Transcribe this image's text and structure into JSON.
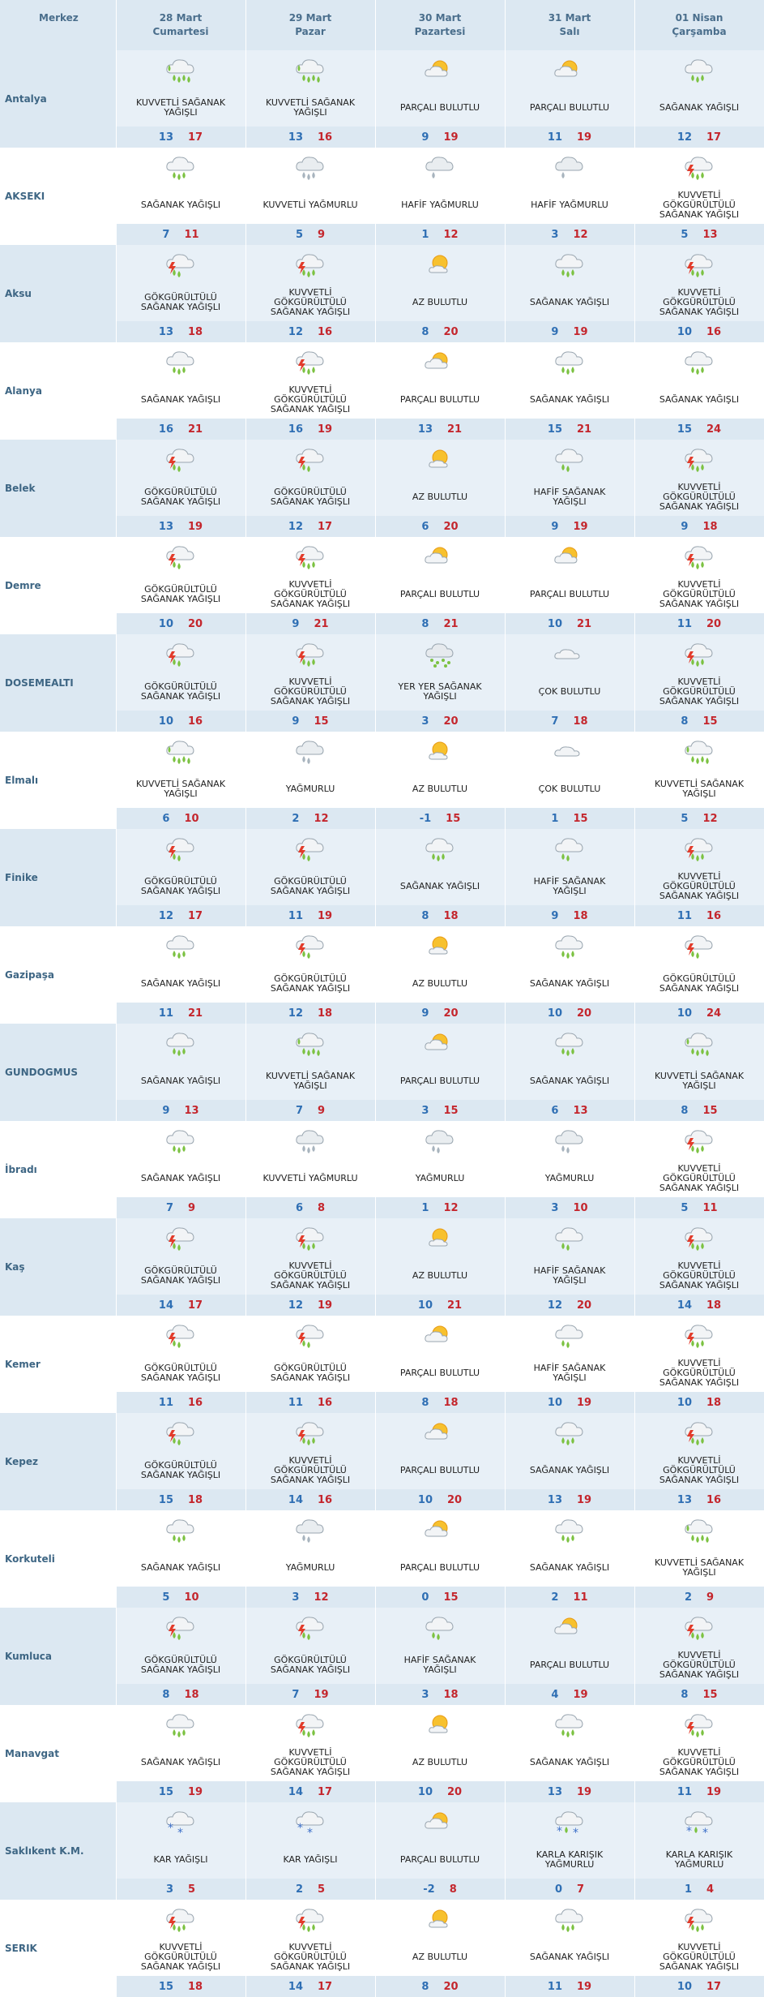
{
  "header": {
    "city_label": "Merkez",
    "days": [
      {
        "date": "28 Mart",
        "dow": "Cumartesi"
      },
      {
        "date": "29 Mart",
        "dow": "Pazar"
      },
      {
        "date": "30 Mart",
        "dow": "Pazartesi"
      },
      {
        "date": "31 Mart",
        "dow": "Salı"
      },
      {
        "date": "01 Nisan",
        "dow": "Çarşamba"
      }
    ]
  },
  "colors": {
    "min_temp": "#2f6fb4",
    "max_temp": "#c4262d",
    "header_bg": "#dce8f2"
  },
  "rows": [
    {
      "city": "Antalya",
      "days": [
        {
          "icon": "heavy-shower",
          "desc": "KUVVETLİ SAĞANAK YAĞIŞLI",
          "min": "13",
          "max": "17"
        },
        {
          "icon": "heavy-shower",
          "desc": "KUVVETLİ SAĞANAK YAĞIŞLI",
          "min": "13",
          "max": "16"
        },
        {
          "icon": "partly-cloudy",
          "desc": "PARÇALI BULUTLU",
          "min": "9",
          "max": "19"
        },
        {
          "icon": "partly-cloudy",
          "desc": "PARÇALI BULUTLU",
          "min": "11",
          "max": "19"
        },
        {
          "icon": "shower",
          "desc": "SAĞANAK YAĞIŞLI",
          "min": "12",
          "max": "17"
        }
      ]
    },
    {
      "city": "AKSEKI",
      "days": [
        {
          "icon": "shower",
          "desc": "SAĞANAK YAĞIŞLI",
          "min": "7",
          "max": "11"
        },
        {
          "icon": "heavy-rain",
          "desc": "KUVVETLİ YAĞMURLU",
          "min": "5",
          "max": "9"
        },
        {
          "icon": "light-rain",
          "desc": "HAFİF YAĞMURLU",
          "min": "1",
          "max": "12"
        },
        {
          "icon": "light-rain",
          "desc": "HAFİF YAĞMURLU",
          "min": "3",
          "max": "12"
        },
        {
          "icon": "heavy-thunder",
          "desc": "KUVVETLİ GÖKGÜRÜLTÜLÜ SAĞANAK YAĞIŞLI",
          "min": "5",
          "max": "13"
        }
      ]
    },
    {
      "city": "Aksu",
      "days": [
        {
          "icon": "thunder-shower",
          "desc": "GÖKGÜRÜLTÜLÜ SAĞANAK YAĞIŞLI",
          "min": "13",
          "max": "18"
        },
        {
          "icon": "heavy-thunder",
          "desc": "KUVVETLİ GÖKGÜRÜLTÜLÜ SAĞANAK YAĞIŞLI",
          "min": "12",
          "max": "16"
        },
        {
          "icon": "few-clouds",
          "desc": "AZ BULUTLU",
          "min": "8",
          "max": "20"
        },
        {
          "icon": "shower",
          "desc": "SAĞANAK YAĞIŞLI",
          "min": "9",
          "max": "19"
        },
        {
          "icon": "heavy-thunder",
          "desc": "KUVVETLİ GÖKGÜRÜLTÜLÜ SAĞANAK YAĞIŞLI",
          "min": "10",
          "max": "16"
        }
      ]
    },
    {
      "city": "Alanya",
      "days": [
        {
          "icon": "shower",
          "desc": "SAĞANAK YAĞIŞLI",
          "min": "16",
          "max": "21"
        },
        {
          "icon": "heavy-thunder",
          "desc": "KUVVETLİ GÖKGÜRÜLTÜLÜ SAĞANAK YAĞIŞLI",
          "min": "16",
          "max": "19"
        },
        {
          "icon": "partly-cloudy",
          "desc": "PARÇALI BULUTLU",
          "min": "13",
          "max": "21"
        },
        {
          "icon": "shower",
          "desc": "SAĞANAK YAĞIŞLI",
          "min": "15",
          "max": "21"
        },
        {
          "icon": "shower",
          "desc": "SAĞANAK YAĞIŞLI",
          "min": "15",
          "max": "24"
        }
      ]
    },
    {
      "city": "Belek",
      "days": [
        {
          "icon": "thunder-shower",
          "desc": "GÖKGÜRÜLTÜLÜ SAĞANAK YAĞIŞLI",
          "min": "13",
          "max": "19"
        },
        {
          "icon": "thunder-shower",
          "desc": "GÖKGÜRÜLTÜLÜ SAĞANAK YAĞIŞLI",
          "min": "12",
          "max": "17"
        },
        {
          "icon": "few-clouds",
          "desc": "AZ BULUTLU",
          "min": "6",
          "max": "20"
        },
        {
          "icon": "light-shower",
          "desc": "HAFİF SAĞANAK YAĞIŞLI",
          "min": "9",
          "max": "19"
        },
        {
          "icon": "heavy-thunder",
          "desc": "KUVVETLİ GÖKGÜRÜLTÜLÜ SAĞANAK YAĞIŞLI",
          "min": "9",
          "max": "18"
        }
      ]
    },
    {
      "city": "Demre",
      "days": [
        {
          "icon": "thunder-shower",
          "desc": "GÖKGÜRÜLTÜLÜ SAĞANAK YAĞIŞLI",
          "min": "10",
          "max": "20"
        },
        {
          "icon": "heavy-thunder",
          "desc": "KUVVETLİ GÖKGÜRÜLTÜLÜ SAĞANAK YAĞIŞLI",
          "min": "9",
          "max": "21"
        },
        {
          "icon": "partly-cloudy",
          "desc": "PARÇALI BULUTLU",
          "min": "8",
          "max": "21"
        },
        {
          "icon": "partly-cloudy",
          "desc": "PARÇALI BULUTLU",
          "min": "10",
          "max": "21"
        },
        {
          "icon": "heavy-thunder",
          "desc": "KUVVETLİ GÖKGÜRÜLTÜLÜ SAĞANAK YAĞIŞLI",
          "min": "11",
          "max": "20"
        }
      ]
    },
    {
      "city": "DOSEMEALTI",
      "days": [
        {
          "icon": "thunder-shower",
          "desc": "GÖKGÜRÜLTÜLÜ SAĞANAK YAĞIŞLI",
          "min": "10",
          "max": "16"
        },
        {
          "icon": "heavy-thunder",
          "desc": "KUVVETLİ GÖKGÜRÜLTÜLÜ SAĞANAK YAĞIŞLI",
          "min": "9",
          "max": "15"
        },
        {
          "icon": "scattered-shower",
          "desc": "YER YER SAĞANAK YAĞIŞLI",
          "min": "3",
          "max": "20"
        },
        {
          "icon": "cloudy",
          "desc": "ÇOK BULUTLU",
          "min": "7",
          "max": "18"
        },
        {
          "icon": "heavy-thunder",
          "desc": "KUVVETLİ GÖKGÜRÜLTÜLÜ SAĞANAK YAĞIŞLI",
          "min": "8",
          "max": "15"
        }
      ]
    },
    {
      "city": "Elmalı",
      "days": [
        {
          "icon": "heavy-shower",
          "desc": "KUVVETLİ SAĞANAK YAĞIŞLI",
          "min": "6",
          "max": "10"
        },
        {
          "icon": "rain",
          "desc": "YAĞMURLU",
          "min": "2",
          "max": "12"
        },
        {
          "icon": "few-clouds",
          "desc": "AZ BULUTLU",
          "min": "-1",
          "max": "15"
        },
        {
          "icon": "cloudy",
          "desc": "ÇOK BULUTLU",
          "min": "1",
          "max": "15"
        },
        {
          "icon": "heavy-shower",
          "desc": "KUVVETLİ SAĞANAK YAĞIŞLI",
          "min": "5",
          "max": "12"
        }
      ]
    },
    {
      "city": "Finike",
      "days": [
        {
          "icon": "thunder-shower",
          "desc": "GÖKGÜRÜLTÜLÜ SAĞANAK YAĞIŞLI",
          "min": "12",
          "max": "17"
        },
        {
          "icon": "thunder-shower",
          "desc": "GÖKGÜRÜLTÜLÜ SAĞANAK YAĞIŞLI",
          "min": "11",
          "max": "19"
        },
        {
          "icon": "shower",
          "desc": "SAĞANAK YAĞIŞLI",
          "min": "8",
          "max": "18"
        },
        {
          "icon": "light-shower",
          "desc": "HAFİF SAĞANAK YAĞIŞLI",
          "min": "9",
          "max": "18"
        },
        {
          "icon": "heavy-thunder",
          "desc": "KUVVETLİ GÖKGÜRÜLTÜLÜ SAĞANAK YAĞIŞLI",
          "min": "11",
          "max": "16"
        }
      ]
    },
    {
      "city": "Gazipaşa",
      "days": [
        {
          "icon": "shower",
          "desc": "SAĞANAK YAĞIŞLI",
          "min": "11",
          "max": "21"
        },
        {
          "icon": "thunder-shower",
          "desc": "GÖKGÜRÜLTÜLÜ SAĞANAK YAĞIŞLI",
          "min": "12",
          "max": "18"
        },
        {
          "icon": "few-clouds",
          "desc": "AZ BULUTLU",
          "min": "9",
          "max": "20"
        },
        {
          "icon": "shower",
          "desc": "SAĞANAK YAĞIŞLI",
          "min": "10",
          "max": "20"
        },
        {
          "icon": "thunder-shower",
          "desc": "GÖKGÜRÜLTÜLÜ SAĞANAK YAĞIŞLI",
          "min": "10",
          "max": "24"
        }
      ]
    },
    {
      "city": "GUNDOGMUS",
      "days": [
        {
          "icon": "shower",
          "desc": "SAĞANAK YAĞIŞLI",
          "min": "9",
          "max": "13"
        },
        {
          "icon": "heavy-shower",
          "desc": "KUVVETLİ SAĞANAK YAĞIŞLI",
          "min": "7",
          "max": "9"
        },
        {
          "icon": "partly-cloudy",
          "desc": "PARÇALI BULUTLU",
          "min": "3",
          "max": "15"
        },
        {
          "icon": "shower",
          "desc": "SAĞANAK YAĞIŞLI",
          "min": "6",
          "max": "13"
        },
        {
          "icon": "heavy-shower",
          "desc": "KUVVETLİ SAĞANAK YAĞIŞLI",
          "min": "8",
          "max": "15"
        }
      ]
    },
    {
      "city": "İbradı",
      "days": [
        {
          "icon": "shower",
          "desc": "SAĞANAK YAĞIŞLI",
          "min": "7",
          "max": "9"
        },
        {
          "icon": "heavy-rain",
          "desc": "KUVVETLİ YAĞMURLU",
          "min": "6",
          "max": "8"
        },
        {
          "icon": "rain",
          "desc": "YAĞMURLU",
          "min": "1",
          "max": "12"
        },
        {
          "icon": "rain",
          "desc": "YAĞMURLU",
          "min": "3",
          "max": "10"
        },
        {
          "icon": "heavy-thunder",
          "desc": "KUVVETLİ GÖKGÜRÜLTÜLÜ SAĞANAK YAĞIŞLI",
          "min": "5",
          "max": "11"
        }
      ]
    },
    {
      "city": "Kaş",
      "days": [
        {
          "icon": "thunder-shower",
          "desc": "GÖKGÜRÜLTÜLÜ SAĞANAK YAĞIŞLI",
          "min": "14",
          "max": "17"
        },
        {
          "icon": "heavy-thunder",
          "desc": "KUVVETLİ GÖKGÜRÜLTÜLÜ SAĞANAK YAĞIŞLI",
          "min": "12",
          "max": "19"
        },
        {
          "icon": "few-clouds",
          "desc": "AZ BULUTLU",
          "min": "10",
          "max": "21"
        },
        {
          "icon": "light-shower",
          "desc": "HAFİF SAĞANAK YAĞIŞLI",
          "min": "12",
          "max": "20"
        },
        {
          "icon": "heavy-thunder",
          "desc": "KUVVETLİ GÖKGÜRÜLTÜLÜ SAĞANAK YAĞIŞLI",
          "min": "14",
          "max": "18"
        }
      ]
    },
    {
      "city": "Kemer",
      "days": [
        {
          "icon": "thunder-shower",
          "desc": "GÖKGÜRÜLTÜLÜ SAĞANAK YAĞIŞLI",
          "min": "11",
          "max": "16"
        },
        {
          "icon": "thunder-shower",
          "desc": "GÖKGÜRÜLTÜLÜ SAĞANAK YAĞIŞLI",
          "min": "11",
          "max": "16"
        },
        {
          "icon": "partly-cloudy",
          "desc": "PARÇALI BULUTLU",
          "min": "8",
          "max": "18"
        },
        {
          "icon": "light-shower",
          "desc": "HAFİF SAĞANAK YAĞIŞLI",
          "min": "10",
          "max": "19"
        },
        {
          "icon": "heavy-thunder",
          "desc": "KUVVETLİ GÖKGÜRÜLTÜLÜ SAĞANAK YAĞIŞLI",
          "min": "10",
          "max": "18"
        }
      ]
    },
    {
      "city": "Kepez",
      "days": [
        {
          "icon": "thunder-shower",
          "desc": "GÖKGÜRÜLTÜLÜ SAĞANAK YAĞIŞLI",
          "min": "15",
          "max": "18"
        },
        {
          "icon": "heavy-thunder",
          "desc": "KUVVETLİ GÖKGÜRÜLTÜLÜ SAĞANAK YAĞIŞLI",
          "min": "14",
          "max": "16"
        },
        {
          "icon": "partly-cloudy",
          "desc": "PARÇALI BULUTLU",
          "min": "10",
          "max": "20"
        },
        {
          "icon": "shower",
          "desc": "SAĞANAK YAĞIŞLI",
          "min": "13",
          "max": "19"
        },
        {
          "icon": "heavy-thunder",
          "desc": "KUVVETLİ GÖKGÜRÜLTÜLÜ SAĞANAK YAĞIŞLI",
          "min": "13",
          "max": "16"
        }
      ]
    },
    {
      "city": "Korkuteli",
      "days": [
        {
          "icon": "shower",
          "desc": "SAĞANAK YAĞIŞLI",
          "min": "5",
          "max": "10"
        },
        {
          "icon": "rain",
          "desc": "YAĞMURLU",
          "min": "3",
          "max": "12"
        },
        {
          "icon": "partly-cloudy",
          "desc": "PARÇALI BULUTLU",
          "min": "0",
          "max": "15"
        },
        {
          "icon": "shower",
          "desc": "SAĞANAK YAĞIŞLI",
          "min": "2",
          "max": "11"
        },
        {
          "icon": "heavy-shower",
          "desc": "KUVVETLİ SAĞANAK YAĞIŞLI",
          "min": "2",
          "max": "9"
        }
      ]
    },
    {
      "city": "Kumluca",
      "days": [
        {
          "icon": "thunder-shower",
          "desc": "GÖKGÜRÜLTÜLÜ SAĞANAK YAĞIŞLI",
          "min": "8",
          "max": "18"
        },
        {
          "icon": "thunder-shower",
          "desc": "GÖKGÜRÜLTÜLÜ SAĞANAK YAĞIŞLI",
          "min": "7",
          "max": "19"
        },
        {
          "icon": "light-shower",
          "desc": "HAFİF SAĞANAK YAĞIŞLI",
          "min": "3",
          "max": "18"
        },
        {
          "icon": "partly-cloudy",
          "desc": "PARÇALI BULUTLU",
          "min": "4",
          "max": "19"
        },
        {
          "icon": "heavy-thunder",
          "desc": "KUVVETLİ GÖKGÜRÜLTÜLÜ SAĞANAK YAĞIŞLI",
          "min": "8",
          "max": "15"
        }
      ]
    },
    {
      "city": "Manavgat",
      "days": [
        {
          "icon": "shower",
          "desc": "SAĞANAK YAĞIŞLI",
          "min": "15",
          "max": "19"
        },
        {
          "icon": "heavy-thunder",
          "desc": "KUVVETLİ GÖKGÜRÜLTÜLÜ SAĞANAK YAĞIŞLI",
          "min": "14",
          "max": "17"
        },
        {
          "icon": "few-clouds",
          "desc": "AZ BULUTLU",
          "min": "10",
          "max": "20"
        },
        {
          "icon": "shower",
          "desc": "SAĞANAK YAĞIŞLI",
          "min": "13",
          "max": "19"
        },
        {
          "icon": "heavy-thunder",
          "desc": "KUVVETLİ GÖKGÜRÜLTÜLÜ SAĞANAK YAĞIŞLI",
          "min": "11",
          "max": "19"
        }
      ]
    },
    {
      "city": "Saklıkent K.M.",
      "days": [
        {
          "icon": "snow",
          "desc": "KAR YAĞIŞLI",
          "min": "3",
          "max": "5"
        },
        {
          "icon": "snow",
          "desc": "KAR YAĞIŞLI",
          "min": "2",
          "max": "5"
        },
        {
          "icon": "partly-cloudy",
          "desc": "PARÇALI BULUTLU",
          "min": "-2",
          "max": "8"
        },
        {
          "icon": "sleet",
          "desc": "KARLA KARIŞIK YAĞMURLU",
          "min": "0",
          "max": "7"
        },
        {
          "icon": "sleet",
          "desc": "KARLA KARIŞIK YAĞMURLU",
          "min": "1",
          "max": "4"
        }
      ]
    },
    {
      "city": "SERIK",
      "days": [
        {
          "icon": "heavy-thunder",
          "desc": "KUVVETLİ GÖKGÜRÜLTÜLÜ SAĞANAK YAĞIŞLI",
          "min": "15",
          "max": "18"
        },
        {
          "icon": "heavy-thunder",
          "desc": "KUVVETLİ GÖKGÜRÜLTÜLÜ SAĞANAK YAĞIŞLI",
          "min": "14",
          "max": "17"
        },
        {
          "icon": "few-clouds",
          "desc": "AZ BULUTLU",
          "min": "8",
          "max": "20"
        },
        {
          "icon": "shower",
          "desc": "SAĞANAK YAĞIŞLI",
          "min": "11",
          "max": "19"
        },
        {
          "icon": "heavy-thunder",
          "desc": "KUVVETLİ GÖKGÜRÜLTÜLÜ SAĞANAK YAĞIŞLI",
          "min": "10",
          "max": "17"
        }
      ]
    }
  ]
}
